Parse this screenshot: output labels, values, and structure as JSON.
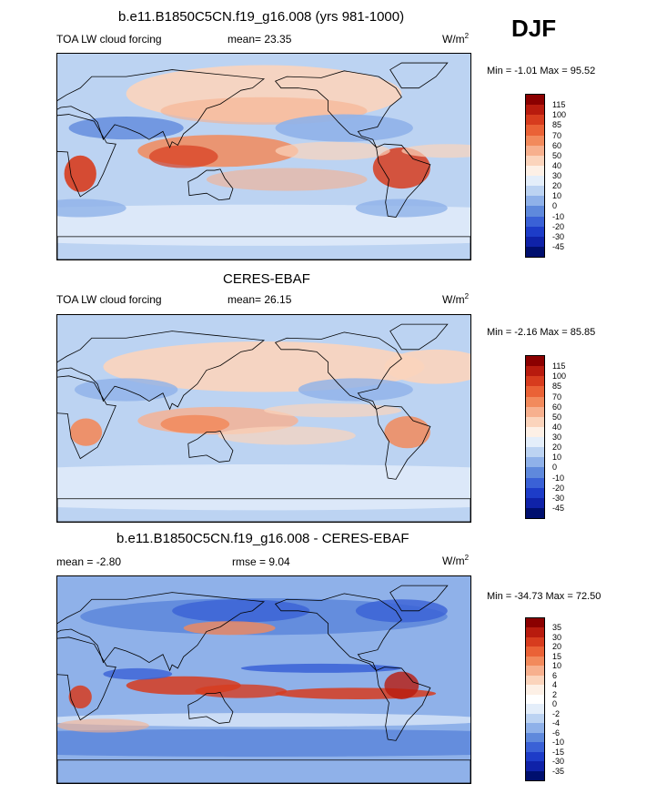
{
  "season": "DJF",
  "panels": [
    {
      "title": "b.e11.B1850C5CN.f19_g16.008 (yrs 981-1000)",
      "left_label": "TOA LW cloud forcing",
      "mean_text": "mean=  23.35",
      "units_base": "W/m",
      "units_exp": "2",
      "minmax": "Min =  -1.01 Max =  95.52",
      "colorbar_labels": [
        "115",
        "100",
        "85",
        "70",
        "60",
        "50",
        "40",
        "30",
        "20",
        "10",
        "0",
        "-10",
        "-20",
        "-30",
        "-45"
      ],
      "colorbar_colors": [
        "#8b0000",
        "#b81b0e",
        "#d73c1e",
        "#ea6236",
        "#f28a5c",
        "#f7b08e",
        "#fbd4bc",
        "#fdf0e6",
        "#e4eefa",
        "#bcd3f2",
        "#8fb1e9",
        "#5f89dc",
        "#3a61d6",
        "#1d3cc8",
        "#0f22a8",
        "#000f6e"
      ],
      "map_style": "model"
    },
    {
      "title": "CERES-EBAF",
      "left_label": "TOA LW cloud forcing",
      "mean_text": "mean=  26.15",
      "units_base": "W/m",
      "units_exp": "2",
      "minmax": "Min =  -2.16 Max =  85.85",
      "colorbar_labels": [
        "115",
        "100",
        "85",
        "70",
        "60",
        "50",
        "40",
        "30",
        "20",
        "10",
        "0",
        "-10",
        "-20",
        "-30",
        "-45"
      ],
      "colorbar_colors": [
        "#8b0000",
        "#b81b0e",
        "#d73c1e",
        "#ea6236",
        "#f28a5c",
        "#f7b08e",
        "#fbd4bc",
        "#fdf0e6",
        "#e4eefa",
        "#bcd3f2",
        "#8fb1e9",
        "#5f89dc",
        "#3a61d6",
        "#1d3cc8",
        "#0f22a8",
        "#000f6e"
      ],
      "map_style": "obs"
    },
    {
      "title": "b.e11.B1850C5CN.f19_g16.008 - CERES-EBAF",
      "left_label": "mean =  -2.80",
      "mean_text": "rmse =   9.04",
      "units_base": "W/m",
      "units_exp": "2",
      "minmax": "Min = -34.73 Max =  72.50",
      "colorbar_labels": [
        "35",
        "30",
        "20",
        "15",
        "10",
        "6",
        "4",
        "2",
        "0",
        "-2",
        "-4",
        "-6",
        "-10",
        "-15",
        "-30",
        "-35"
      ],
      "colorbar_colors": [
        "#8b0000",
        "#b81b0e",
        "#d73c1e",
        "#ea6236",
        "#f28a5c",
        "#f7b08e",
        "#fbd4bc",
        "#fdf0e6",
        "#ffffff",
        "#e4eefa",
        "#bcd3f2",
        "#8fb1e9",
        "#5f89dc",
        "#3a61d6",
        "#1d3cc8",
        "#0f22a8",
        "#000f6e"
      ],
      "map_style": "diff"
    }
  ]
}
